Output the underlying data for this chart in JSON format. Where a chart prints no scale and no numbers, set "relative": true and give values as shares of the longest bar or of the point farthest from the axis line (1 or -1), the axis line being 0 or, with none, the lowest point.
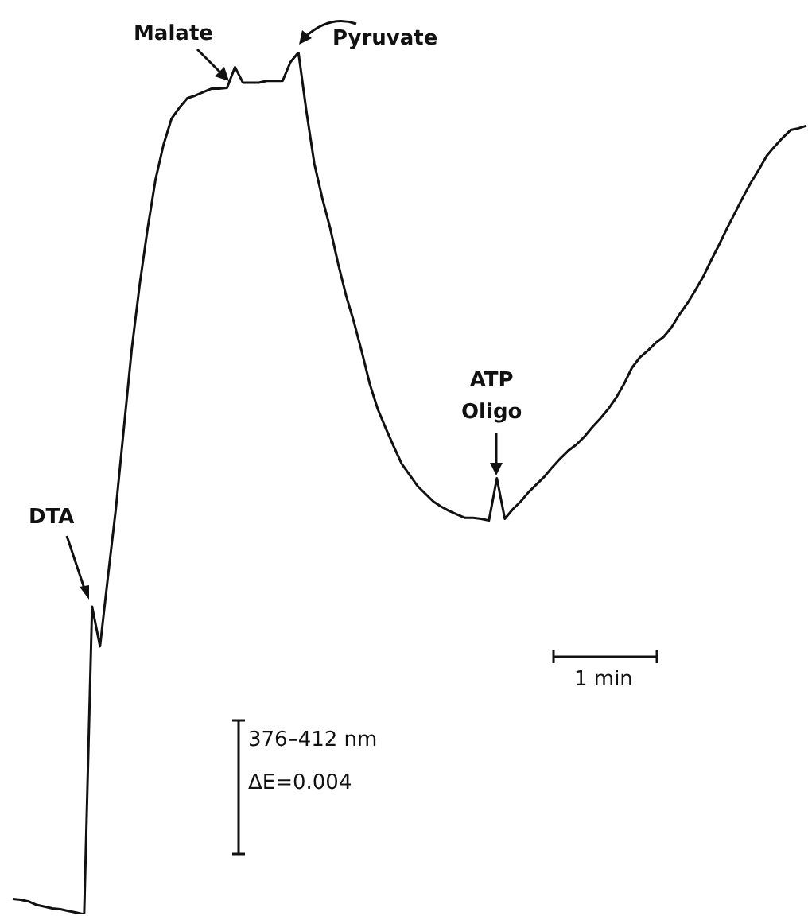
{
  "chart_data": {
    "type": "line",
    "relative": true,
    "marker": "none",
    "line_style": "solid",
    "legend": false,
    "categories": [
      null,
      null,
      null,
      null,
      null,
      null,
      null,
      null,
      null,
      null,
      null,
      null,
      null,
      null,
      null,
      null,
      null,
      null,
      null,
      null,
      null,
      null,
      null,
      null,
      null,
      null,
      null,
      null,
      null,
      null,
      null,
      null,
      null,
      null,
      null,
      null,
      null,
      null,
      null,
      null,
      null,
      null,
      null,
      null,
      null,
      null,
      null,
      null,
      null,
      null,
      null,
      null,
      null,
      null,
      null,
      null,
      null,
      null,
      null,
      null,
      null,
      null,
      null,
      null,
      null,
      null,
      null,
      null,
      null,
      null,
      null,
      null,
      null,
      null,
      null,
      null,
      null,
      null,
      null,
      null,
      null,
      null,
      null,
      null,
      null,
      null,
      null,
      null,
      null,
      null,
      null,
      null,
      null,
      null,
      null,
      null,
      null,
      null,
      null,
      null,
      null
    ],
    "series": [
      {
        "color": "#111111",
        "values": [
          0.018,
          0.017,
          0.015,
          0.011,
          0.009,
          0.007,
          0.006,
          0.004,
          0.002,
          0,
          0.357,
          0.311,
          0.392,
          0.471,
          0.564,
          0.656,
          0.731,
          0.796,
          0.853,
          0.893,
          0.923,
          0.936,
          0.947,
          0.95,
          0.954,
          0.958,
          0.958,
          0.959,
          0.983,
          0.965,
          0.965,
          0.965,
          0.967,
          0.967,
          0.967,
          0.989,
          1,
          0.932,
          0.871,
          0.831,
          0.796,
          0.755,
          0.718,
          0.687,
          0.652,
          0.615,
          0.586,
          0.564,
          0.543,
          0.523,
          0.51,
          0.497,
          0.488,
          0.479,
          0.473,
          0.468,
          0.464,
          0.46,
          0.46,
          0.459,
          0.457,
          0.506,
          0.459,
          0.47,
          0.479,
          0.49,
          0.499,
          0.508,
          0.519,
          0.529,
          0.538,
          0.545,
          0.554,
          0.565,
          0.575,
          0.586,
          0.599,
          0.615,
          0.634,
          0.646,
          0.654,
          0.663,
          0.67,
          0.681,
          0.696,
          0.709,
          0.724,
          0.74,
          0.759,
          0.777,
          0.796,
          0.814,
          0.832,
          0.849,
          0.864,
          0.88,
          0.891,
          0.901,
          0.91,
          0.912,
          0.915
        ]
      }
    ],
    "annotations": [
      "DTA",
      "Malate",
      "Pyruvate",
      "ATP\nOligo",
      "1 min",
      "376–412 nm",
      "ΔE=0.004"
    ]
  }
}
